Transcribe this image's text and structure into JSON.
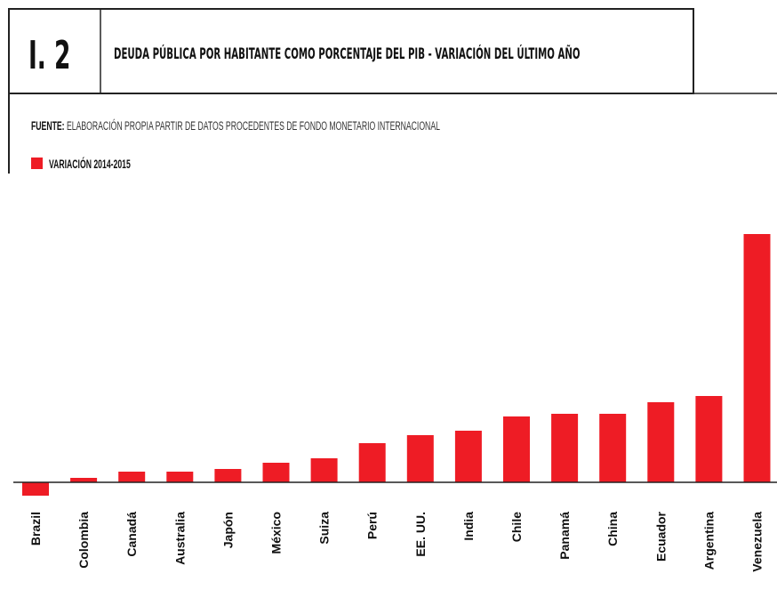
{
  "chart_data": {
    "type": "bar",
    "code": "I. 2",
    "title": "DEUDA PÚBLICA POR HABITANTE COMO PORCENTAJE DEL PIB - VARIACIÓN DEL ÚLTIMO AÑO",
    "source_label": "FUENTE:",
    "source": "ELABORACIÓN PROPIA  PARTIR DE DATOS PROCEDENTES DE FONDO MONETARIO INTERNACIONAL",
    "categories": [
      "Brazil",
      "Colombia",
      "Canadá",
      "Australia",
      "Japón",
      "México",
      "Suiza",
      "Perú",
      "EE. UU.",
      "India",
      "Chile",
      "Panamá",
      "China",
      "Ecuador",
      "Argentina",
      "Venezuela"
    ],
    "series": [
      {
        "name": "VARIACIÓN 2014-2015",
        "color": "#ee1c25",
        "values": [
          -1.5,
          0.5,
          1.2,
          1.2,
          1.5,
          2.2,
          2.7,
          4.4,
          5.3,
          5.8,
          7.4,
          7.7,
          7.7,
          9.0,
          9.7,
          27.9
        ]
      }
    ]
  }
}
